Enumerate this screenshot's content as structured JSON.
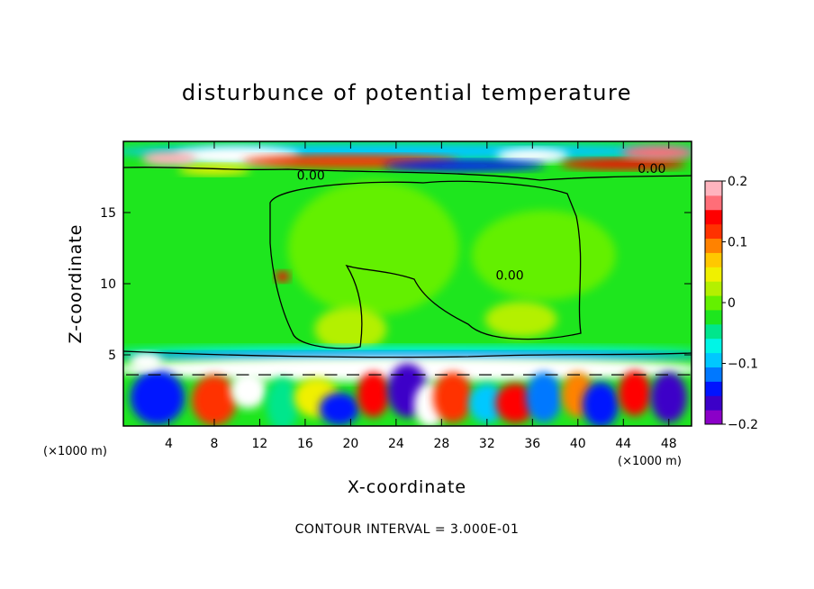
{
  "chart_data": {
    "type": "heatmap",
    "title": "disturbunce of potential temperature",
    "xlabel": "X-coordinate",
    "ylabel": "Z-coordinate",
    "x_unit_left": "(×1000 m)",
    "x_unit_right": "(×1000 m)",
    "xlim": [
      0,
      50
    ],
    "ylim": [
      0,
      20
    ],
    "x_ticks": [
      4,
      8,
      12,
      16,
      20,
      24,
      28,
      32,
      36,
      40,
      44,
      48
    ],
    "y_ticks": [
      5,
      10,
      15
    ],
    "colorbar": {
      "range": [
        -0.2,
        0.2
      ],
      "ticks": [
        {
          "value": 0.2,
          "label": "0.2"
        },
        {
          "value": 0.1,
          "label": "0.1"
        },
        {
          "value": 0,
          "label": "0"
        },
        {
          "value": -0.1,
          "label": "−0.1"
        },
        {
          "value": -0.2,
          "label": "−0.2"
        }
      ],
      "colors": [
        "#8b00c8",
        "#3c00c8",
        "#0014ff",
        "#0078ff",
        "#00c8ff",
        "#00f5e6",
        "#00e68c",
        "#1ee61e",
        "#64f000",
        "#b4f000",
        "#f0f000",
        "#ffc800",
        "#ff8200",
        "#ff3200",
        "#ff0000",
        "#ff6e78",
        "#ffb4be"
      ]
    },
    "contour_labels": [
      {
        "text": "0.00",
        "x": 16.5,
        "y": 17.3
      },
      {
        "text": "0.00",
        "x": 46.5,
        "y": 17.8
      },
      {
        "text": "0.00",
        "x": 34.0,
        "y": 10.3
      }
    ],
    "contour_interval_label": "CONTOUR INTERVAL = 3.000E-01",
    "grid": false
  }
}
